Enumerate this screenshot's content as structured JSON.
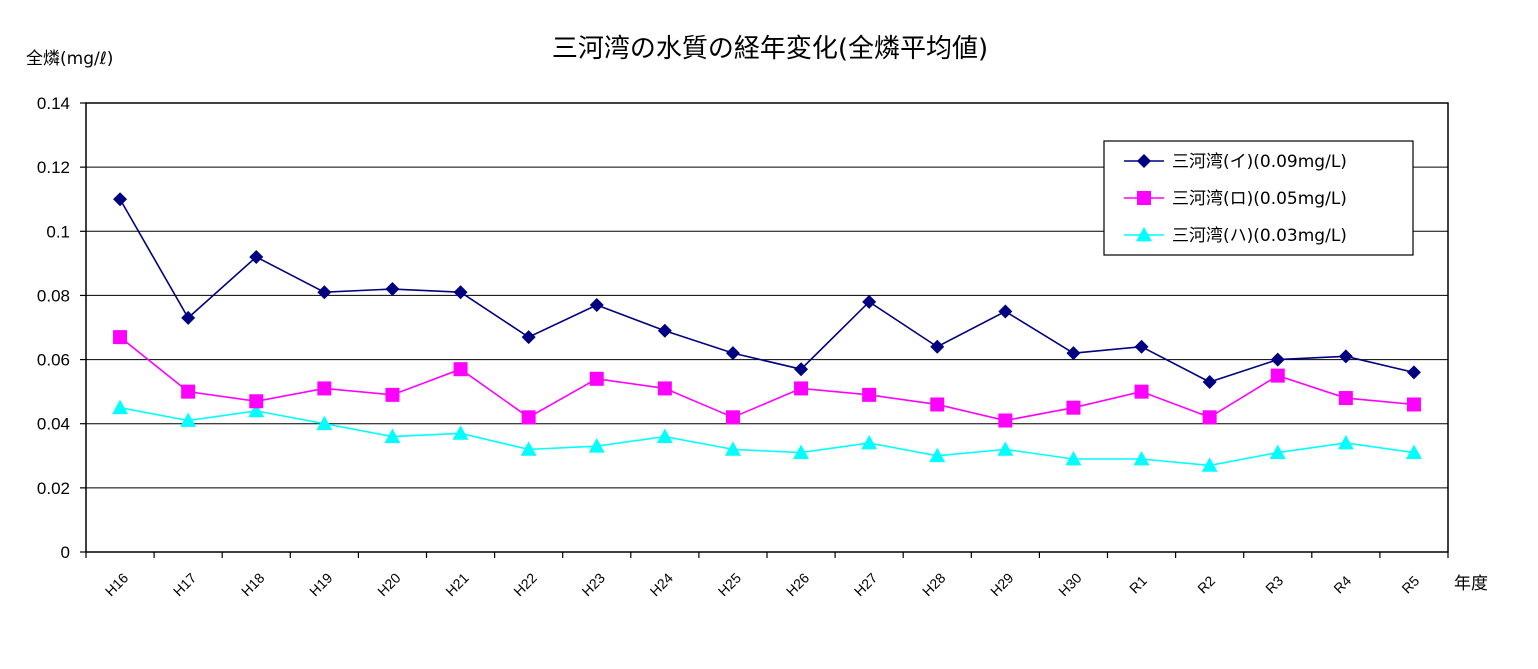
{
  "chart_data": {
    "type": "line",
    "title": "三河湾の水質の経年変化(全燐平均値)",
    "ylabel": "全燐(mg/ℓ)",
    "xlabel": "年度",
    "ylim": [
      0,
      0.14
    ],
    "yticks": [
      0,
      0.02,
      0.04,
      0.06,
      0.08,
      0.1,
      0.12,
      0.14
    ],
    "ytick_labels": [
      "0",
      "0.02",
      "0.04",
      "0.06",
      "0.08",
      "0.1",
      "0.12",
      "0.14"
    ],
    "grid": true,
    "legend_position": "top-right",
    "categories": [
      "H16",
      "H17",
      "H18",
      "H19",
      "H20",
      "H21",
      "H22",
      "H23",
      "H24",
      "H25",
      "H26",
      "H27",
      "H28",
      "H29",
      "H30",
      "R1",
      "R2",
      "R3",
      "R4",
      "R5"
    ],
    "series": [
      {
        "name": "三河湾(イ)(0.09mg/L)",
        "color": "#000080",
        "marker": "diamond",
        "values": [
          0.11,
          0.073,
          0.092,
          0.081,
          0.082,
          0.081,
          0.067,
          0.077,
          0.069,
          0.062,
          0.057,
          0.078,
          0.064,
          0.075,
          0.062,
          0.064,
          0.053,
          0.06,
          0.061,
          0.056
        ]
      },
      {
        "name": "三河湾(ロ)(0.05mg/L)",
        "color": "#ff00ff",
        "marker": "square",
        "values": [
          0.067,
          0.05,
          0.047,
          0.051,
          0.049,
          0.057,
          0.042,
          0.054,
          0.051,
          0.042,
          0.051,
          0.049,
          0.046,
          0.041,
          0.045,
          0.05,
          0.042,
          0.055,
          0.048,
          0.046
        ]
      },
      {
        "name": "三河湾(ハ)(0.03mg/L)",
        "color": "#00ffff",
        "marker": "triangle",
        "values": [
          0.045,
          0.041,
          0.044,
          0.04,
          0.036,
          0.037,
          0.032,
          0.033,
          0.036,
          0.032,
          0.031,
          0.034,
          0.03,
          0.032,
          0.029,
          0.029,
          0.027,
          0.031,
          0.034,
          0.031
        ]
      }
    ]
  }
}
